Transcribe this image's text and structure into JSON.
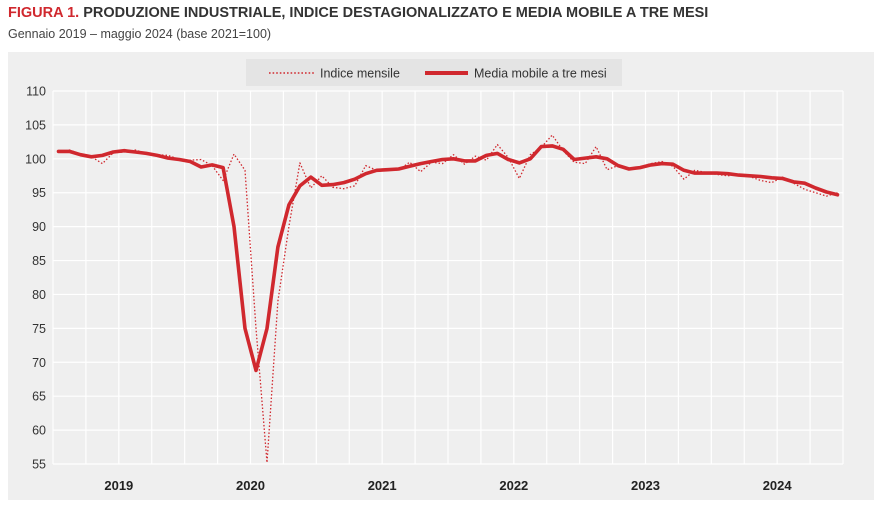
{
  "header": {
    "figure_label": "FIGURA 1.",
    "title": "PRODUZIONE INDUSTRIALE, INDICE DESTAGIONALIZZATO E MEDIA MOBILE A TRE MESI",
    "subtitle": "Gennaio 2019 – maggio 2024 (base 2021=100)"
  },
  "colors": {
    "series": "#d0282e",
    "panel": "#efefef",
    "grid": "#ffffff"
  },
  "chart_data": {
    "type": "line",
    "title": "PRODUZIONE INDUSTRIALE, INDICE DESTAGIONALIZZATO E MEDIA MOBILE A TRE MESI",
    "subtitle": "Gennaio 2019 – maggio 2024 (base 2021=100)",
    "xlabel": "",
    "ylabel": "",
    "ylim": [
      55,
      110
    ],
    "yticks": [
      110,
      105,
      100,
      95,
      90,
      85,
      80,
      75,
      70,
      65,
      60,
      55
    ],
    "xticks": [
      "2019",
      "2020",
      "2021",
      "2022",
      "2023",
      "2024"
    ],
    "grid": true,
    "legend_position": "top-center",
    "x_start": "2019-01",
    "series": [
      {
        "name": "Indice mensile",
        "style": "dotted",
        "values": [
          101.0,
          101.3,
          100.7,
          100.3,
          99.3,
          100.9,
          101.0,
          101.3,
          100.8,
          100.6,
          100.5,
          99.9,
          99.8,
          99.9,
          99.0,
          96.8,
          100.7,
          98.3,
          75.0,
          55.2,
          79.0,
          90.0,
          99.4,
          95.7,
          97.5,
          95.8,
          95.6,
          96.0,
          99.0,
          98.3,
          98.5,
          98.3,
          99.5,
          98.1,
          99.5,
          99.3,
          100.6,
          99.2,
          100.4,
          99.8,
          102.1,
          100.2,
          97.1,
          100.6,
          101.7,
          103.5,
          101.2,
          99.5,
          99.3,
          101.8,
          98.4,
          99.0,
          98.5,
          98.8,
          99.3,
          99.6,
          98.9,
          97.0,
          98.3,
          98.0,
          97.7,
          97.5,
          97.7,
          97.4,
          96.8,
          96.5,
          97.3,
          96.4,
          95.5,
          95.0,
          94.5,
          95.0
        ]
      },
      {
        "name": "Media mobile a tre mesi",
        "style": "solid",
        "values": [
          101.1,
          101.1,
          100.6,
          100.3,
          100.5,
          101.0,
          101.2,
          101.0,
          100.8,
          100.5,
          100.1,
          99.9,
          99.6,
          98.8,
          99.1,
          98.7,
          90.0,
          75.0,
          68.8,
          75.0,
          87.0,
          93.2,
          96.0,
          97.3,
          96.1,
          96.2,
          96.5,
          97.0,
          97.8,
          98.3,
          98.4,
          98.5,
          98.9,
          99.3,
          99.6,
          99.9,
          100.0,
          99.7,
          99.7,
          100.5,
          100.8,
          99.9,
          99.4,
          100.0,
          101.8,
          101.9,
          101.4,
          99.9,
          100.1,
          100.3,
          100.0,
          99.0,
          98.5,
          98.7,
          99.1,
          99.3,
          99.2,
          98.3,
          97.9,
          97.9,
          97.9,
          97.8,
          97.6,
          97.5,
          97.4,
          97.2,
          97.1,
          96.6,
          96.4,
          95.7,
          95.1,
          94.7
        ]
      }
    ]
  }
}
